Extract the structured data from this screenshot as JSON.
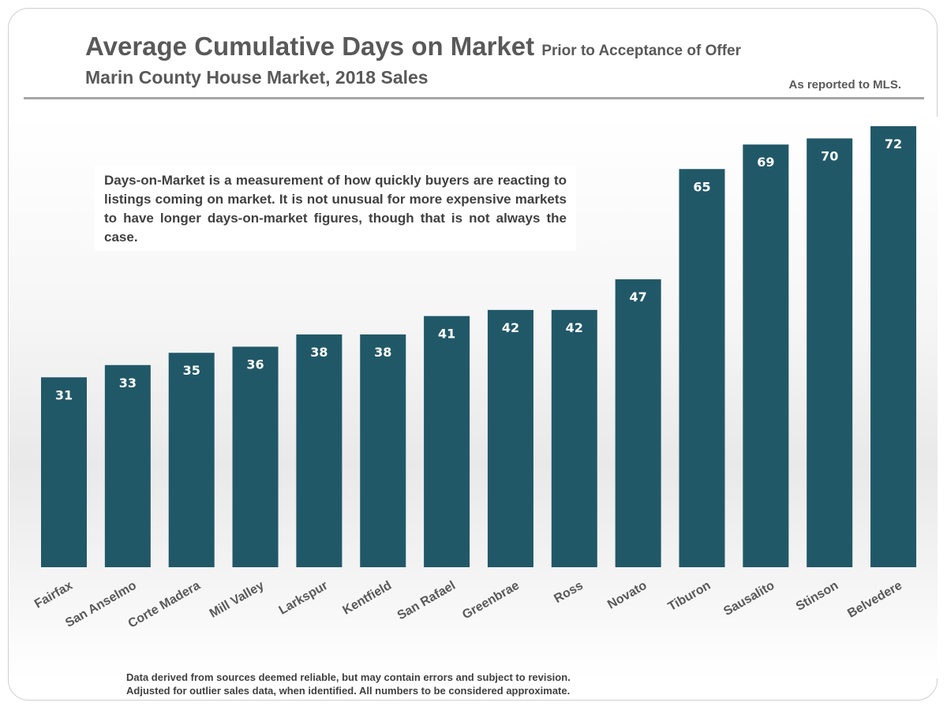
{
  "header": {
    "title": "Average Cumulative Days on Market",
    "title_suffix": "Prior to Acceptance of Offer",
    "subtitle": "Marin County House Market, 2018 Sales",
    "source_note": "As reported to MLS."
  },
  "callout": {
    "text": "Days-on-Market is a measurement of how quickly buyers are reacting to listings coming on market. It is not unusual for more expensive markets to have longer days-on-market figures, though that is not always the case."
  },
  "footer": {
    "line1": "Data derived from sources deemed reliable, but may contain errors and subject to revision.",
    "line2": "Adjusted for outlier sales data, when identified. All numbers to be considered approximate."
  },
  "colors": {
    "bar": "#215868",
    "bar_label": "#ffffff",
    "tick_label": "#595959"
  },
  "chart_data": {
    "type": "bar",
    "title": "Average Cumulative Days on Market",
    "categories": [
      "Fairfax",
      "San Anselmo",
      "Corte Madera",
      "Mill Valley",
      "Larkspur",
      "Kentfield",
      "San Rafael",
      "Greenbrae",
      "Ross",
      "Novato",
      "Tiburon",
      "Sausalito",
      "Stinson",
      "Belvedere"
    ],
    "values": [
      31,
      33,
      35,
      36,
      38,
      38,
      41,
      42,
      42,
      47,
      65,
      69,
      70,
      72
    ],
    "ylim": [
      0,
      72
    ],
    "grid": false,
    "legend": "none",
    "data_labels": true
  }
}
